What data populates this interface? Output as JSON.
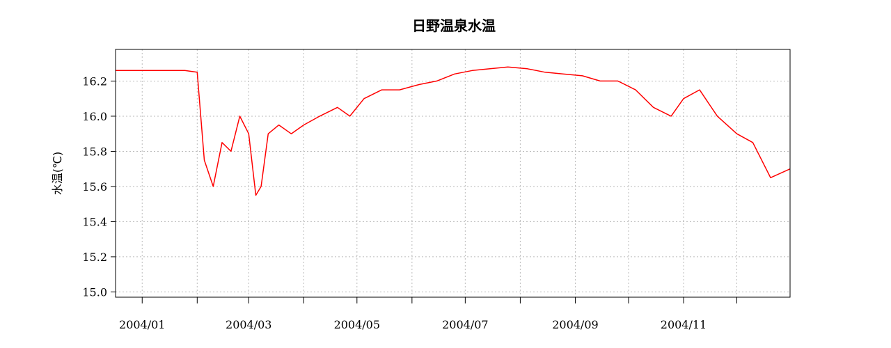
{
  "chart_data": {
    "type": "line",
    "title": "日野温泉水温",
    "xlabel": "",
    "ylabel": "水温(℃)",
    "ylim": [
      14.97,
      16.38
    ],
    "xlim": [
      "2003-12-17",
      "2004-12-31"
    ],
    "yticks": [
      "15.0",
      "15.2",
      "15.4",
      "15.6",
      "15.8",
      "16.0",
      "16.2"
    ],
    "xticks_labeled": [
      {
        "date": "2004-01-01",
        "label": "2004/01"
      },
      {
        "date": "2004-03-01",
        "label": "2004/03"
      },
      {
        "date": "2004-05-01",
        "label": "2004/05"
      },
      {
        "date": "2004-07-01",
        "label": "2004/07"
      },
      {
        "date": "2004-09-01",
        "label": "2004/09"
      },
      {
        "date": "2004-11-01",
        "label": "2004/11"
      }
    ],
    "xticks_minor": [
      "2004-02-01",
      "2004-04-01",
      "2004-06-01",
      "2004-08-01",
      "2004-10-01",
      "2004-12-01"
    ],
    "grid": true,
    "line_color": "#ff0000",
    "series": [
      {
        "x": [
          "2003-12-17",
          "2003-12-25",
          "2004-01-05",
          "2004-01-15",
          "2004-01-25",
          "2004-02-01",
          "2004-02-05",
          "2004-02-10",
          "2004-02-15",
          "2004-02-20",
          "2004-02-25",
          "2004-03-01",
          "2004-03-05",
          "2004-03-08",
          "2004-03-12",
          "2004-03-18",
          "2004-03-25",
          "2004-04-01",
          "2004-04-10",
          "2004-04-20",
          "2004-04-27",
          "2004-05-05",
          "2004-05-15",
          "2004-05-25",
          "2004-06-05",
          "2004-06-15",
          "2004-06-25",
          "2004-07-05",
          "2004-07-15",
          "2004-07-25",
          "2004-08-05",
          "2004-08-15",
          "2004-08-25",
          "2004-09-05",
          "2004-09-15",
          "2004-09-25",
          "2004-10-05",
          "2004-10-15",
          "2004-10-25",
          "2004-11-01",
          "2004-11-10",
          "2004-11-20",
          "2004-12-01",
          "2004-12-10",
          "2004-12-20",
          "2004-12-31"
        ],
        "values": [
          16.26,
          16.26,
          16.26,
          16.26,
          16.26,
          16.25,
          15.75,
          15.6,
          15.85,
          15.8,
          16.0,
          15.9,
          15.55,
          15.6,
          15.9,
          15.95,
          15.9,
          15.95,
          16.0,
          16.05,
          16.0,
          16.1,
          16.15,
          16.15,
          16.18,
          16.2,
          16.24,
          16.26,
          16.27,
          16.28,
          16.27,
          16.25,
          16.24,
          16.23,
          16.2,
          16.2,
          16.15,
          16.05,
          16.0,
          16.1,
          16.15,
          16.0,
          15.9,
          15.85,
          15.65,
          15.7
        ]
      }
    ]
  }
}
